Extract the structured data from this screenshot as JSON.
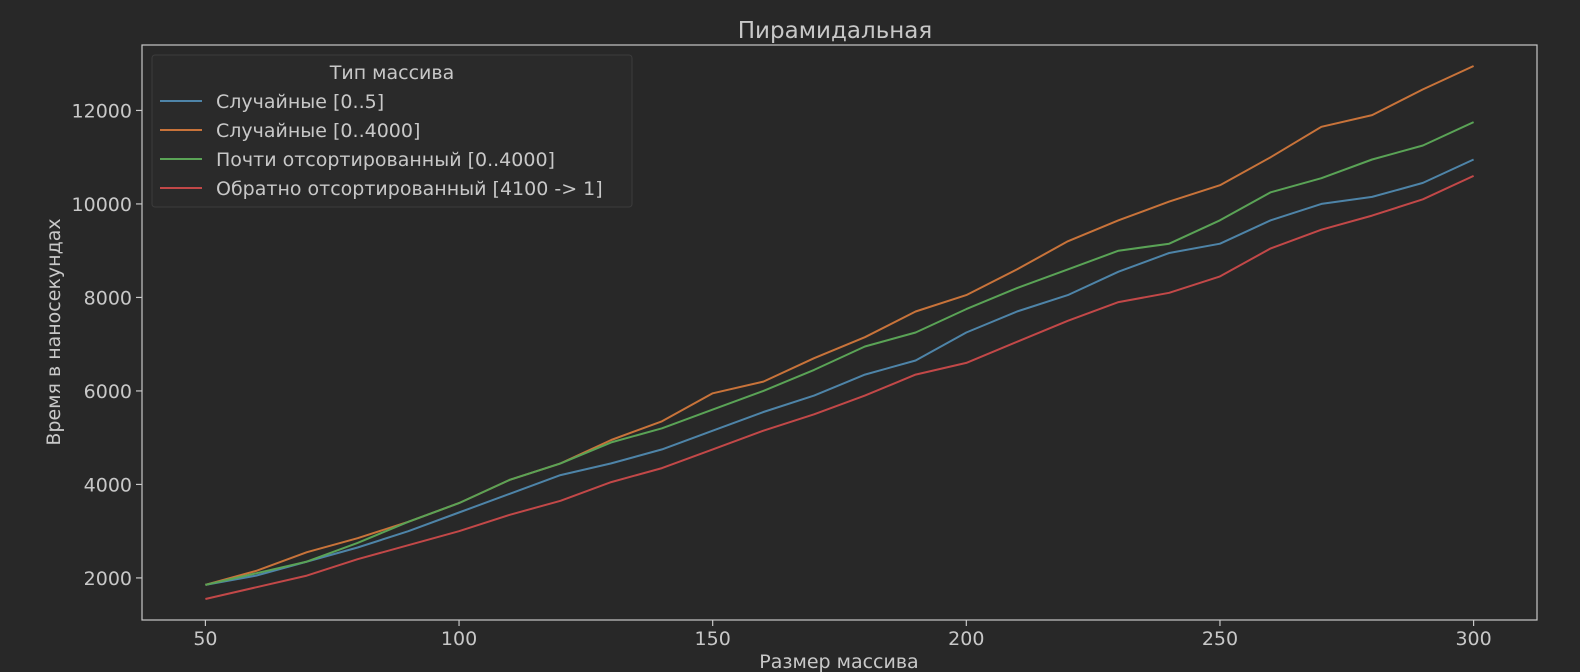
{
  "chart_data": {
    "type": "line",
    "title": "Пирамидальная",
    "xlabel": "Размер массива",
    "ylabel": "Время в наносекундах",
    "xlim": [
      37.5,
      312.5
    ],
    "ylim": [
      1100,
      13400
    ],
    "xticks": [
      50,
      100,
      150,
      200,
      250,
      300
    ],
    "yticks": [
      2000,
      4000,
      6000,
      8000,
      10000,
      12000
    ],
    "x": [
      50,
      60,
      70,
      80,
      90,
      100,
      110,
      120,
      130,
      140,
      150,
      160,
      170,
      180,
      190,
      200,
      210,
      220,
      230,
      240,
      250,
      260,
      270,
      280,
      290,
      300
    ],
    "legend": {
      "title": "Тип массива",
      "position": "upper-left"
    },
    "grid": false,
    "series": [
      {
        "name": "Случайные [0..5]",
        "color": "#4e84a8",
        "values": [
          1850,
          2050,
          2350,
          2650,
          3000,
          3400,
          3800,
          4200,
          4450,
          4750,
          5150,
          5550,
          5900,
          6350,
          6650,
          7250,
          7700,
          8050,
          8550,
          8950,
          9150,
          9650,
          10000,
          10150,
          10450,
          10950
        ]
      },
      {
        "name": "Случайные [0..4000]",
        "color": "#c8733a",
        "values": [
          1850,
          2150,
          2550,
          2850,
          3200,
          3600,
          4100,
          4450,
          4950,
          5350,
          5950,
          6200,
          6700,
          7150,
          7700,
          8050,
          8600,
          9200,
          9650,
          10050,
          10400,
          11000,
          11650,
          11900,
          12450,
          12950
        ]
      },
      {
        "name": "Почти отсортированный [0..4000]",
        "color": "#5aa356",
        "values": [
          1850,
          2100,
          2350,
          2750,
          3200,
          3600,
          4100,
          4450,
          4900,
          5200,
          5600,
          6000,
          6450,
          6950,
          7250,
          7750,
          8200,
          8600,
          9000,
          9150,
          9650,
          10250,
          10550,
          10950,
          11250,
          11750
        ]
      },
      {
        "name": "Обратно отсортированный [4100 -> 1]",
        "color": "#c24848",
        "values": [
          1550,
          1800,
          2050,
          2400,
          2700,
          3000,
          3350,
          3650,
          4050,
          4350,
          4750,
          5150,
          5500,
          5900,
          6350,
          6600,
          7050,
          7500,
          7900,
          8100,
          8450,
          9050,
          9450,
          9750,
          10100,
          10600
        ]
      }
    ]
  }
}
